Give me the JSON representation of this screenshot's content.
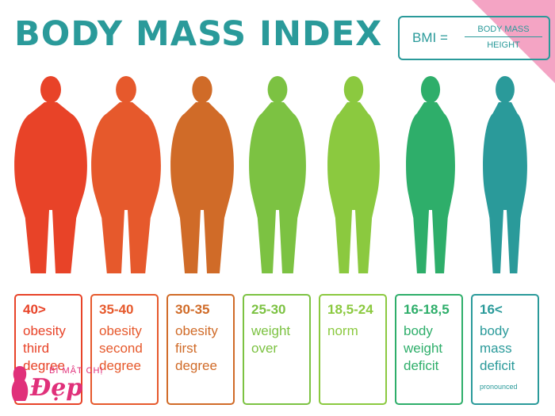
{
  "title": "BODY MASS INDEX",
  "formula": {
    "bmi": "BMI =",
    "numerator": "BODY MASS",
    "denominator": "HEIGHT"
  },
  "cards": [
    {
      "range": "40>",
      "desc": [
        "obesity",
        "third",
        "degree"
      ],
      "color": "#e84328"
    },
    {
      "range": "35-40",
      "desc": [
        "obesity",
        "second",
        "degree"
      ],
      "color": "#e6592c"
    },
    {
      "range": "30-35",
      "desc": [
        "obesity",
        "first",
        "degree"
      ],
      "color": "#d06b28"
    },
    {
      "range": "25-30",
      "desc": [
        "weight",
        "over"
      ],
      "color": "#7cc242"
    },
    {
      "range": "18,5-24",
      "desc": [
        "norm"
      ],
      "color": "#8bc93f"
    },
    {
      "range": "16-18,5",
      "desc": [
        "body",
        "weight",
        "deficit"
      ],
      "color": "#2eae6a"
    },
    {
      "range": "16<",
      "desc": [
        "body",
        "mass",
        "deficit"
      ],
      "note": "pronounced",
      "color": "#2a9a9a"
    }
  ],
  "figure_colors": [
    "#e84328",
    "#e6592c",
    "#d06b28",
    "#7cc242",
    "#8bc93f",
    "#2eae6a",
    "#2a9a9a"
  ],
  "watermark": {
    "small": "BÍ MẬT CHỊ",
    "big": "Đẹp"
  }
}
